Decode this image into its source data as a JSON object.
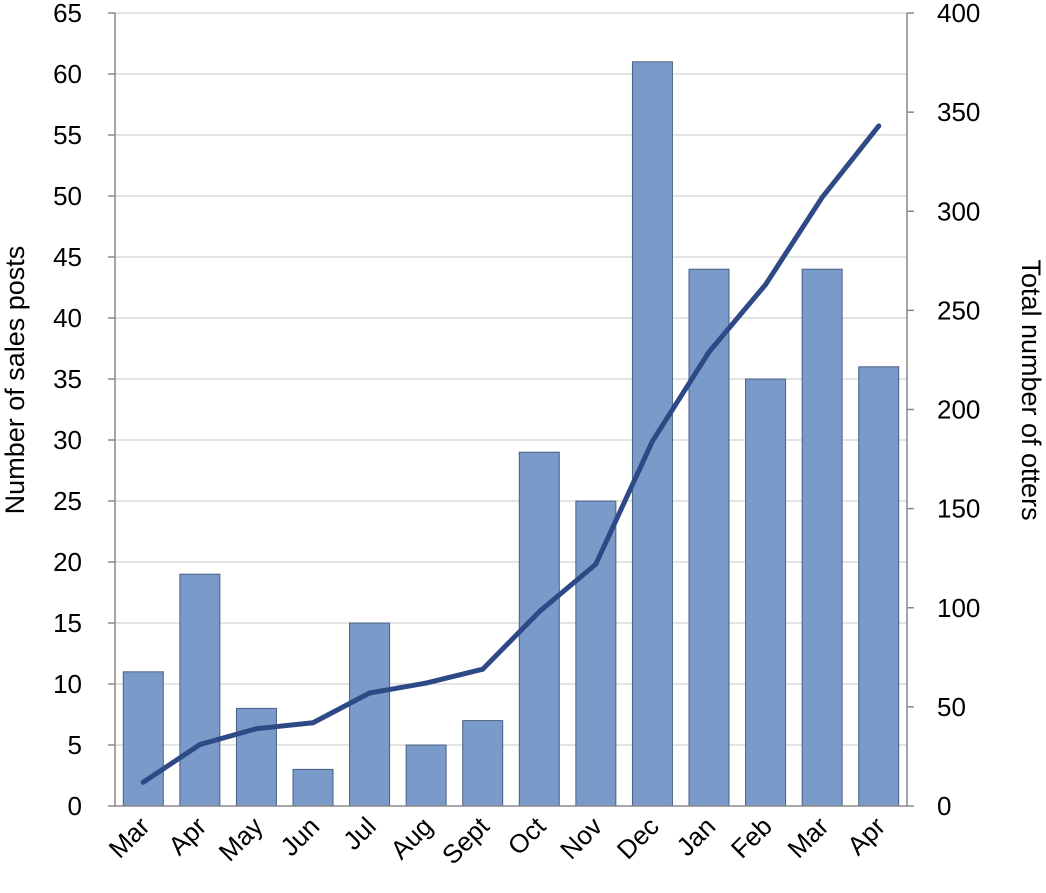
{
  "chart_data": {
    "type": "bar",
    "categories": [
      "Mar",
      "Apr",
      "May",
      "Jun",
      "Jul",
      "Aug",
      "Sept",
      "Oct",
      "Nov",
      "Dec",
      "Jan",
      "Feb",
      "Mar",
      "Apr"
    ],
    "series": [
      {
        "type": "bar",
        "axis": "left",
        "values": [
          11,
          19,
          8,
          3,
          15,
          5,
          7,
          29,
          25,
          61,
          44,
          35,
          44,
          36
        ],
        "color": "#7a9bc9"
      },
      {
        "type": "line",
        "axis": "right",
        "values": [
          12,
          31,
          39,
          42,
          57,
          62,
          69,
          98,
          122,
          184,
          229,
          263,
          307,
          343
        ],
        "color": "#2e4a86"
      }
    ],
    "ylabel": "Number of sales posts",
    "y2label": "Total number of otters",
    "ylim": [
      0,
      65
    ],
    "y2lim": [
      0,
      400
    ],
    "yticks": [
      0,
      5,
      10,
      15,
      20,
      25,
      30,
      35,
      40,
      45,
      50,
      55,
      60,
      65
    ],
    "y2ticks": [
      0,
      50,
      100,
      150,
      200,
      250,
      300,
      350,
      400
    ],
    "grid": true,
    "legend": "none"
  }
}
